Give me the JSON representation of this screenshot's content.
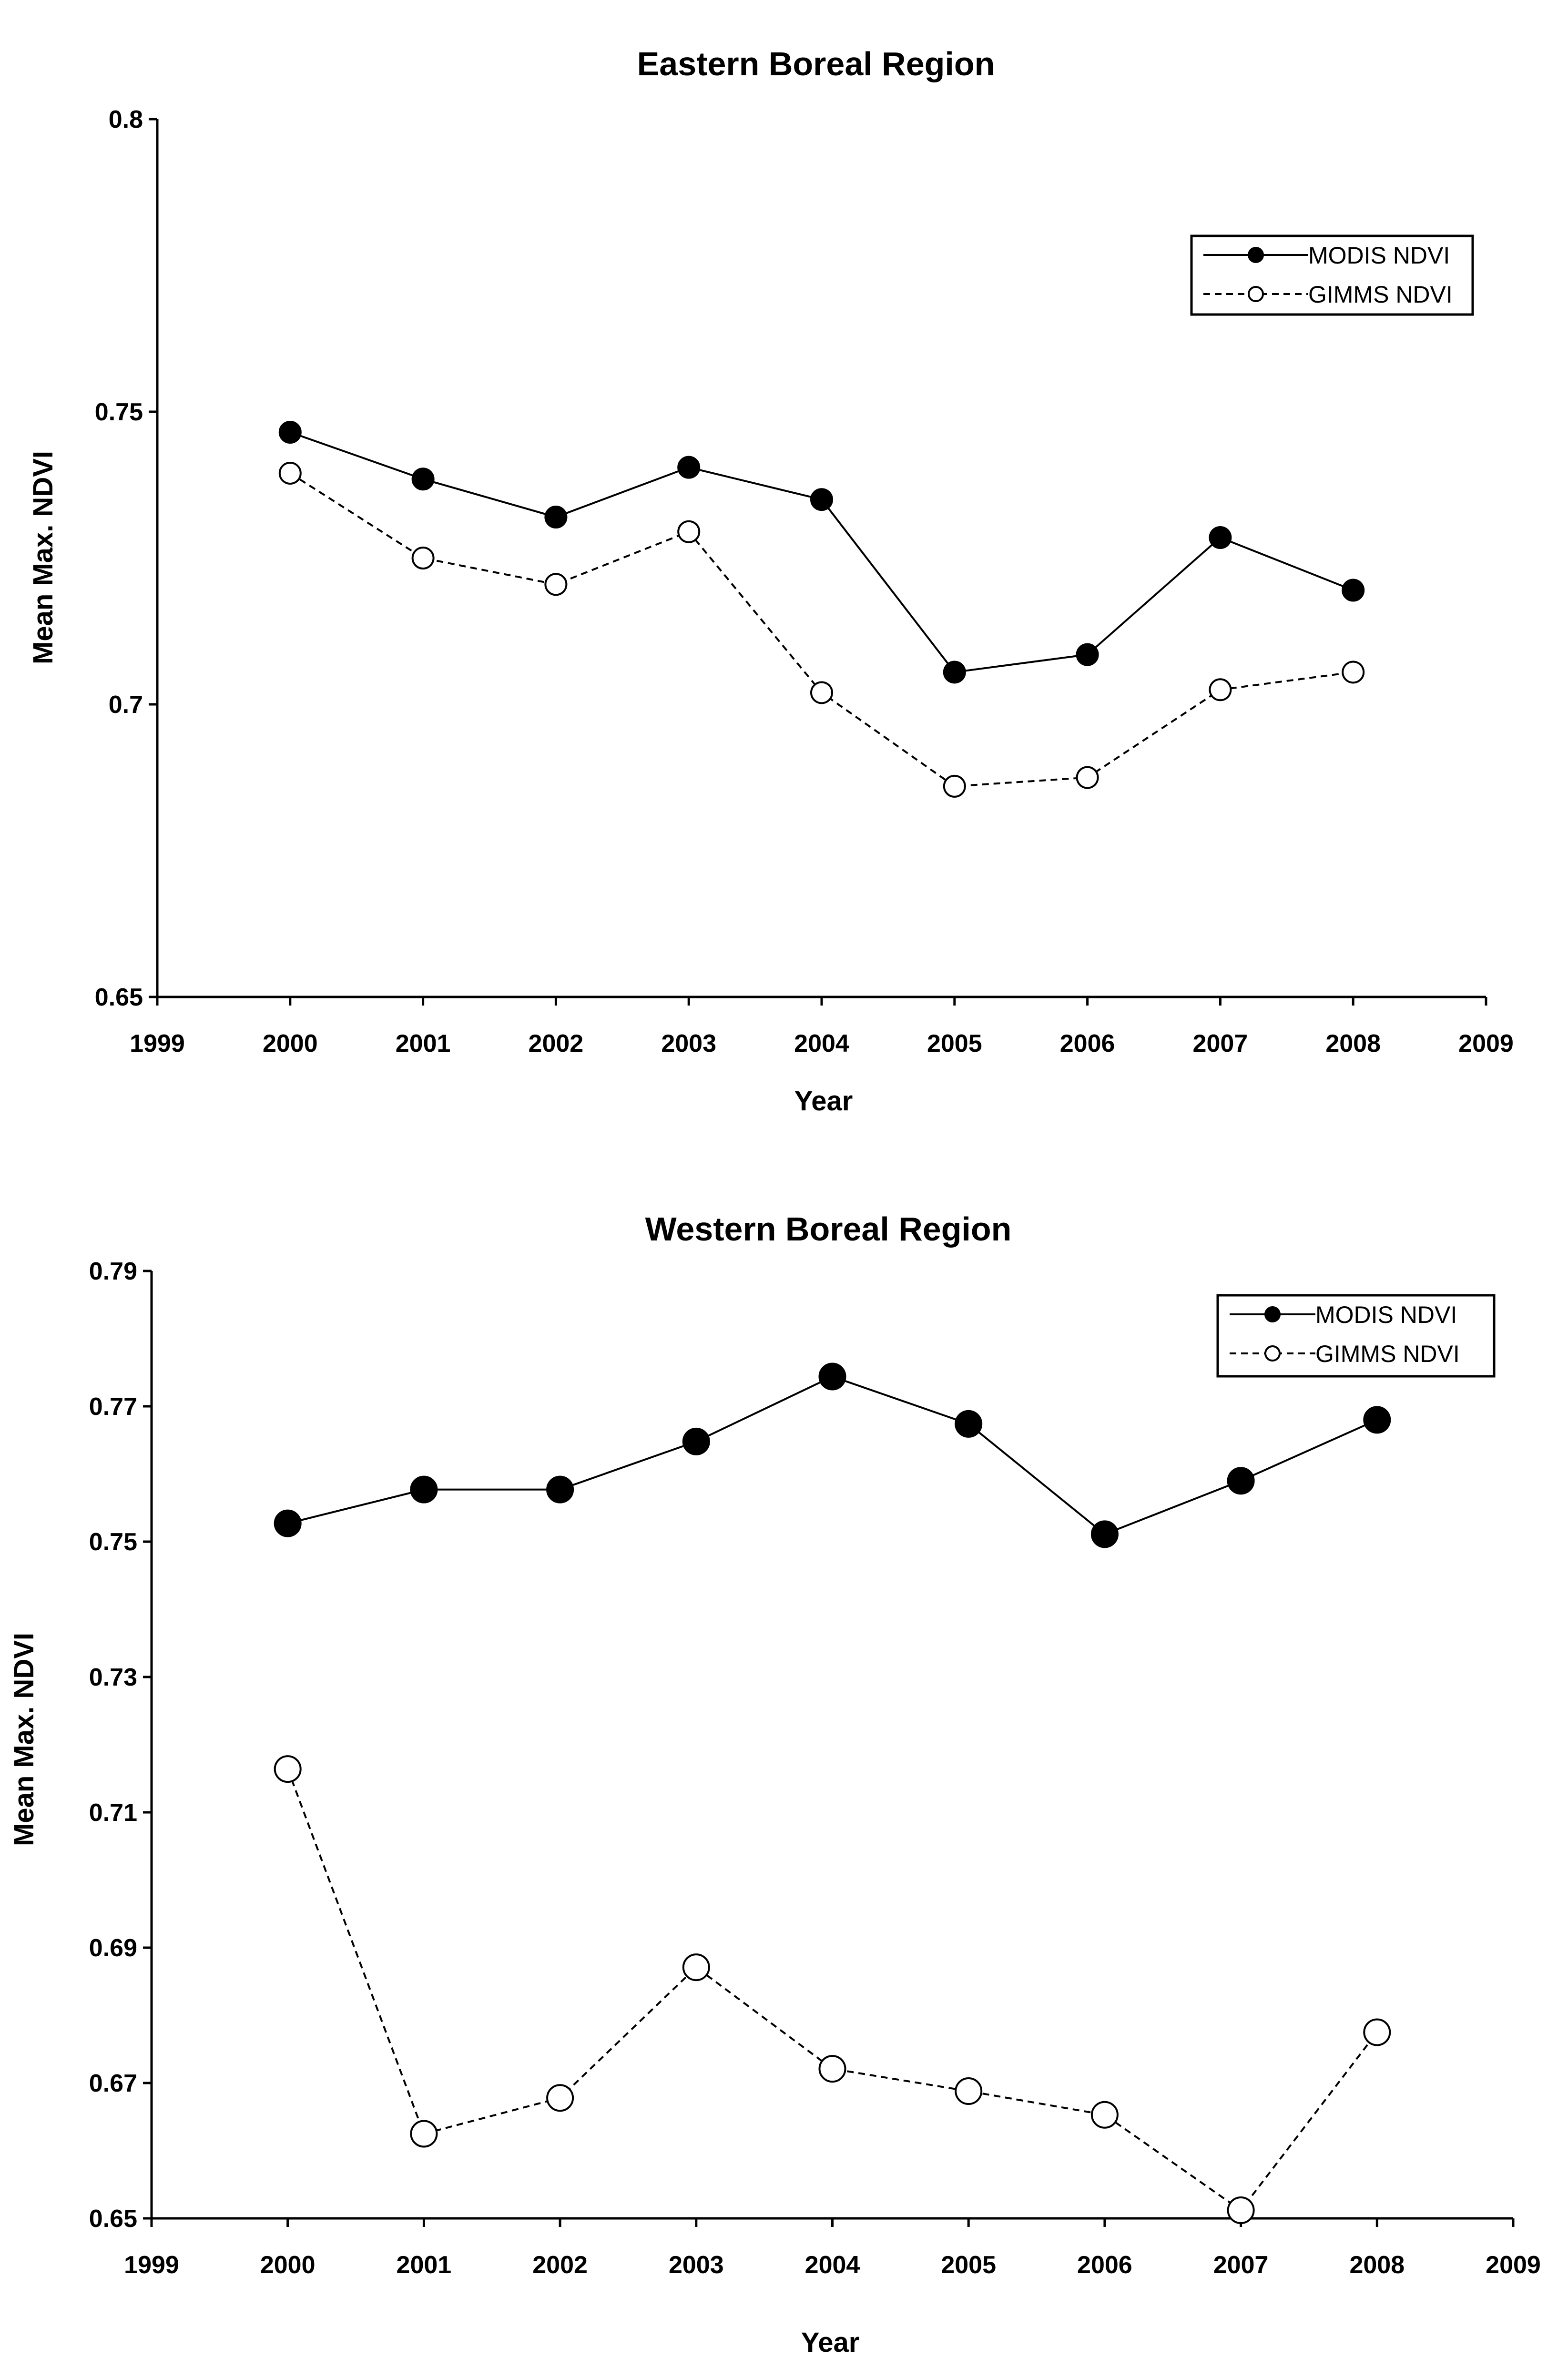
{
  "chart_data": [
    {
      "type": "line",
      "title": "Eastern Boreal Region",
      "xlabel": "Year",
      "ylabel": "Mean Max. NDVI",
      "xlim": [
        1999,
        2009
      ],
      "ylim": [
        0.65,
        0.8
      ],
      "x_ticks": [
        "1999",
        "2000",
        "2001",
        "2002",
        "2003",
        "2004",
        "2005",
        "2006",
        "2007",
        "2008",
        "2009"
      ],
      "y_ticks": [
        "0.65",
        "0.7",
        "0.75",
        "0.8"
      ],
      "legend_position": "top-right",
      "x": [
        2000,
        2001,
        2002,
        2003,
        2004,
        2005,
        2006,
        2007,
        2008
      ],
      "series": [
        {
          "name": "MODIS NDVI",
          "marker": "filled-circle",
          "line": "solid",
          "values": [
            0.7465,
            0.7385,
            0.732,
            0.7405,
            0.735,
            0.7055,
            0.7085,
            0.7285,
            0.7195
          ]
        },
        {
          "name": "GIMMS NDVI",
          "marker": "open-circle",
          "line": "dashed",
          "values": [
            0.7395,
            0.725,
            0.7205,
            0.7295,
            0.702,
            0.686,
            0.6875,
            0.7025,
            0.7055
          ]
        }
      ]
    },
    {
      "type": "line",
      "title": "Western Boreal Region",
      "xlabel": "Year",
      "ylabel": "Mean Max. NDVI",
      "xlim": [
        1999,
        2009
      ],
      "ylim": [
        0.65,
        0.79
      ],
      "x_ticks": [
        "1999",
        "2000",
        "2001",
        "2002",
        "2003",
        "2004",
        "2005",
        "2006",
        "2007",
        "2008",
        "2009"
      ],
      "y_ticks": [
        "0.65",
        "0.67",
        "0.69",
        "0.71",
        "0.73",
        "0.75",
        "0.77",
        "0.79"
      ],
      "legend_position": "top-right",
      "x": [
        2000,
        2001,
        2002,
        2003,
        2004,
        2005,
        2006,
        2007,
        2008
      ],
      "series": [
        {
          "name": "MODIS NDVI",
          "marker": "filled-circle",
          "line": "solid",
          "values": [
            0.7527,
            0.7577,
            0.7577,
            0.7648,
            0.7744,
            0.7674,
            0.7511,
            0.759,
            0.768
          ]
        },
        {
          "name": "GIMMS NDVI",
          "marker": "open-circle",
          "line": "dashed",
          "values": [
            0.7164,
            0.6625,
            0.6678,
            0.6871,
            0.6721,
            0.6688,
            0.6653,
            0.6512,
            0.6775
          ]
        }
      ]
    }
  ]
}
